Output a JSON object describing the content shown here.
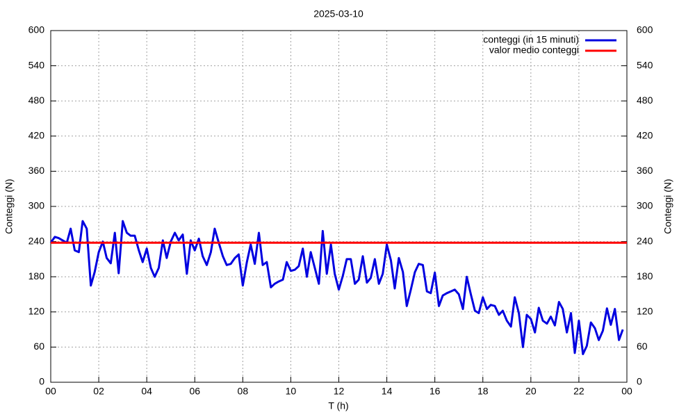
{
  "chart_data": {
    "type": "line",
    "title": "2025-03-10",
    "xlabel": "T (h)",
    "ylabel": "Conteggi (N)",
    "y2label": "Conteggi (N)",
    "xlim": [
      0,
      24
    ],
    "xticks": [
      {
        "value": 0,
        "label": "00"
      },
      {
        "value": 2,
        "label": "02"
      },
      {
        "value": 4,
        "label": "04"
      },
      {
        "value": 6,
        "label": "06"
      },
      {
        "value": 8,
        "label": "08"
      },
      10,
      12,
      14,
      16,
      18,
      20,
      22,
      {
        "value": 24,
        "label": "00"
      }
    ],
    "ylim": [
      0,
      600
    ],
    "yticks": [
      0,
      60,
      120,
      180,
      240,
      300,
      360,
      420,
      480,
      540,
      600
    ],
    "y2lim": [
      0,
      600
    ],
    "y2ticks": [
      0,
      60,
      120,
      180,
      240,
      300,
      360,
      420,
      480,
      540,
      600
    ],
    "grid": true,
    "legend": "top-right",
    "series": [
      {
        "name": "conteggi (in 15 minuti)",
        "color": "#0000e0",
        "x": [
          0,
          0.17,
          0.33,
          0.5,
          0.67,
          0.83,
          1,
          1.17,
          1.33,
          1.5,
          1.67,
          1.83,
          2,
          2.17,
          2.33,
          2.5,
          2.67,
          2.83,
          3,
          3.17,
          3.33,
          3.5,
          3.67,
          3.83,
          4,
          4.17,
          4.33,
          4.5,
          4.67,
          4.83,
          5,
          5.17,
          5.33,
          5.5,
          5.67,
          5.83,
          6,
          6.17,
          6.33,
          6.5,
          6.67,
          6.83,
          7,
          7.17,
          7.33,
          7.5,
          7.67,
          7.83,
          8,
          8.17,
          8.33,
          8.5,
          8.67,
          8.83,
          9,
          9.17,
          9.33,
          9.5,
          9.67,
          9.83,
          10,
          10.17,
          10.33,
          10.5,
          10.67,
          10.83,
          11,
          11.17,
          11.33,
          11.5,
          11.67,
          11.83,
          12,
          12.17,
          12.33,
          12.5,
          12.67,
          12.83,
          13,
          13.17,
          13.33,
          13.5,
          13.67,
          13.83,
          14,
          14.17,
          14.33,
          14.5,
          14.67,
          14.83,
          15,
          15.17,
          15.33,
          15.5,
          15.67,
          15.83,
          16,
          16.17,
          16.33,
          16.5,
          16.67,
          16.83,
          17,
          17.17,
          17.33,
          17.5,
          17.67,
          17.83,
          18,
          18.17,
          18.33,
          18.5,
          18.67,
          18.83,
          19,
          19.17,
          19.33,
          19.5,
          19.67,
          19.83,
          20,
          20.17,
          20.33,
          20.5,
          20.67,
          20.83,
          21,
          21.17,
          21.33,
          21.5,
          21.67,
          21.83,
          22,
          22.17,
          22.33,
          22.5,
          22.67,
          22.83,
          23,
          23.17,
          23.33,
          23.5,
          23.67,
          23.83
        ],
        "values": [
          238,
          248,
          246,
          242,
          238,
          262,
          225,
          222,
          275,
          262,
          165,
          188,
          222,
          240,
          212,
          203,
          255,
          186,
          275,
          255,
          250,
          250,
          225,
          205,
          228,
          195,
          180,
          195,
          242,
          212,
          240,
          255,
          242,
          252,
          185,
          242,
          225,
          245,
          215,
          200,
          222,
          262,
          238,
          215,
          200,
          202,
          212,
          218,
          165,
          205,
          235,
          202,
          255,
          200,
          205,
          162,
          168,
          172,
          175,
          205,
          190,
          192,
          198,
          228,
          180,
          222,
          195,
          168,
          258,
          185,
          235,
          185,
          158,
          182,
          210,
          210,
          168,
          175,
          215,
          170,
          178,
          210,
          168,
          185,
          235,
          208,
          160,
          212,
          188,
          130,
          158,
          188,
          202,
          200,
          155,
          152,
          187,
          130,
          148,
          152,
          155,
          158,
          150,
          125,
          180,
          150,
          122,
          118,
          145,
          125,
          132,
          130,
          115,
          122,
          105,
          95,
          145,
          118,
          60,
          115,
          108,
          85,
          127,
          105,
          100,
          112,
          97,
          137,
          125,
          85,
          118,
          50,
          105,
          48,
          62,
          102,
          92,
          72,
          88,
          126,
          98,
          125,
          72,
          90
        ]
      },
      {
        "name": "valor medio conteggi",
        "color": "#ff0000",
        "x": [
          0,
          24
        ],
        "values": [
          238,
          238
        ]
      }
    ]
  }
}
